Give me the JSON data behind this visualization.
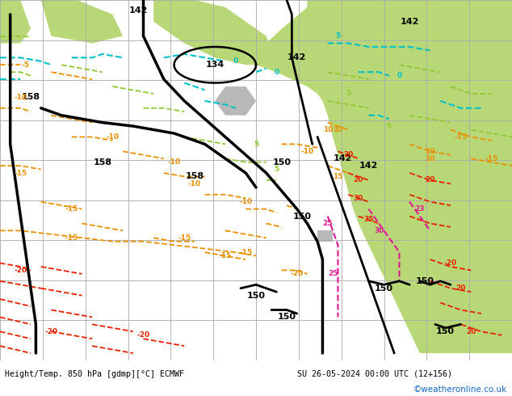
{
  "title_left": "Height/Temp. 850 hPa [gdmp][°C] ECMWF",
  "title_right": "SU 26-05-2024 00:00 UTC (12+156)",
  "watermark": "©weatheronline.co.uk",
  "bg_grey": "#d2d2d2",
  "bg_green": "#b8d878",
  "bg_grey_land": "#b8b8b8",
  "grid_color": "#aaaaaa",
  "bottom_bar_color": "#d0d0d0",
  "orange": "#e89000",
  "red": "#e82000",
  "cyan": "#00c0c8",
  "green_line": "#90c830",
  "magenta": "#e01890",
  "black": "#000000",
  "figsize": [
    6.34,
    4.9
  ],
  "dpi": 100
}
